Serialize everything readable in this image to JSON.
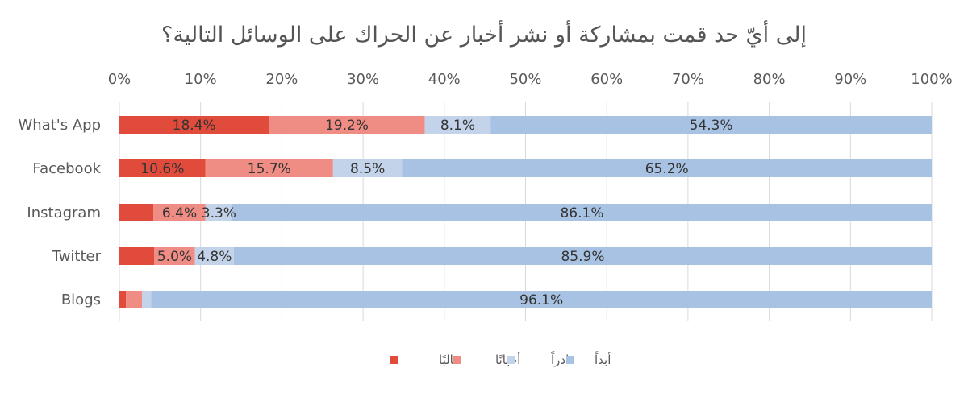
{
  "chart_data": {
    "type": "bar",
    "orientation": "horizontal",
    "stacked": "percent",
    "title": "إلى أيّ حد قمت بمشاركة أو نشر أخبار عن الحراك على الوسائل التالية؟",
    "xlim": [
      0,
      100
    ],
    "x_tick_labels": [
      "0%",
      "10%",
      "20%",
      "30%",
      "40%",
      "50%",
      "60%",
      "70%",
      "80%",
      "90%",
      "100%"
    ],
    "grid": true,
    "legend_position": "bottom",
    "categories": [
      "What's App",
      "Facebook",
      "Instagram",
      "Twitter",
      "Blogs"
    ],
    "series": [
      {
        "name": "غالبًا",
        "color": "#e04b3c",
        "values": [
          18.4,
          10.6,
          4.2,
          4.3,
          0.8
        ],
        "labels": [
          "18.4%",
          "10.6%",
          "",
          "",
          ""
        ]
      },
      {
        "name": "أحيانًا",
        "color": "#ef8c84",
        "values": [
          19.2,
          15.7,
          6.4,
          5.0,
          2.0
        ],
        "labels": [
          "19.2%",
          "15.7%",
          "6.4%",
          "5.0%",
          ""
        ]
      },
      {
        "name": "نادراً",
        "color": "#c3d3e9",
        "values": [
          8.1,
          8.5,
          3.3,
          4.8,
          1.1
        ],
        "labels": [
          "8.1%",
          "8.5%",
          "3.3%",
          "4.8%",
          ""
        ]
      },
      {
        "name": "أبداً",
        "color": "#a7c2e2",
        "values": [
          54.3,
          65.2,
          86.1,
          85.9,
          96.1
        ],
        "labels": [
          "54.3%",
          "65.2%",
          "86.1%",
          "85.9%",
          "96.1%"
        ]
      }
    ]
  }
}
